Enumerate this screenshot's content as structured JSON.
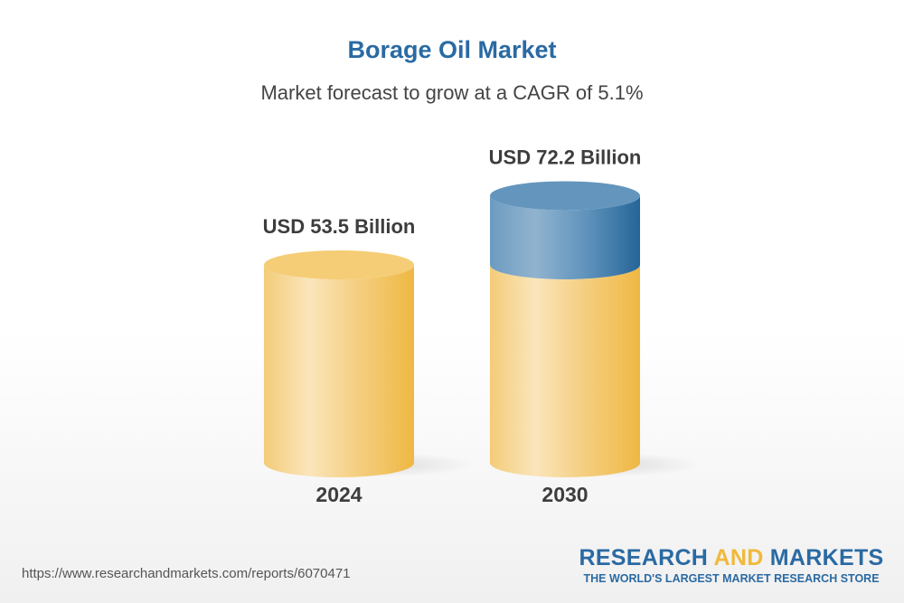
{
  "title": "Borage Oil Market",
  "subtitle": "Market forecast to grow at a CAGR of 5.1%",
  "chart_data": {
    "type": "bar",
    "categories": [
      "2024",
      "2030"
    ],
    "values": [
      53.5,
      72.2
    ],
    "data_labels": [
      "USD 53.5 Billion",
      "USD 72.2 Billion"
    ],
    "unit": "USD Billion",
    "cagr": "5.1%",
    "colors": {
      "base": "#f2c25a",
      "growth": "#3b79a8"
    }
  },
  "footer": {
    "url": "https://www.researchandmarkets.com/reports/6070471",
    "logo_part1": "RESEARCH ",
    "logo_part2": "AND",
    "logo_part3": " MARKETS",
    "tagline": "THE WORLD'S LARGEST MARKET RESEARCH STORE"
  }
}
